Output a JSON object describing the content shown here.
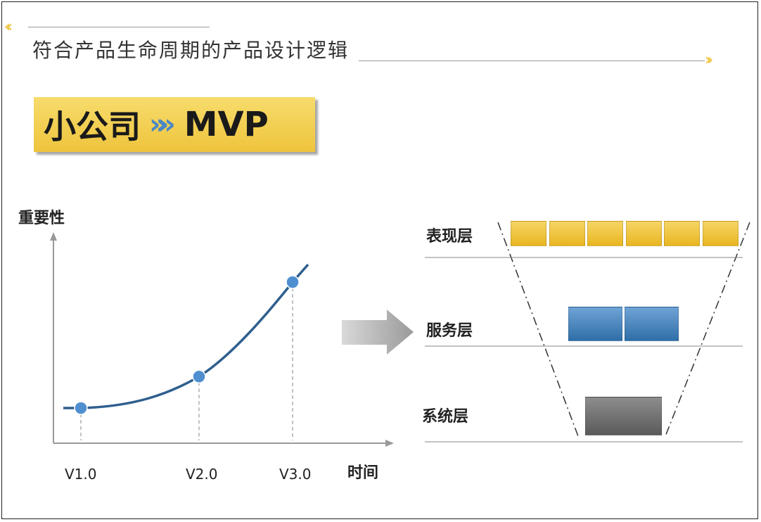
{
  "header": {
    "title": "符合产品生命周期的产品设计逻辑",
    "deco_left": "‹‹",
    "deco_right": "››"
  },
  "banner": {
    "left": "小公司",
    "arrow": "»",
    "right": "MVP"
  },
  "chart_data": {
    "type": "line",
    "ylabel": "重要性",
    "xlabel": "时间",
    "categories": [
      "V1.0",
      "V2.0",
      "V3.0"
    ],
    "points": [
      {
        "label": "V1.0",
        "value": 1
      },
      {
        "label": "V2.0",
        "value": 2
      },
      {
        "label": "V3.0",
        "value": 5
      }
    ],
    "color": "#2f5f8e",
    "marker_color": "#4f8fd0"
  },
  "layers": [
    {
      "label": "表现层",
      "blocks": 6,
      "color": "yellow"
    },
    {
      "label": "服务层",
      "blocks": 2,
      "color": "blue"
    },
    {
      "label": "系统层",
      "blocks": 1,
      "color": "gray"
    }
  ],
  "colors": {
    "accent_yellow": "#eec43c",
    "accent_blue": "#4a87c4",
    "arrow_gray": "#a8a8a8"
  }
}
